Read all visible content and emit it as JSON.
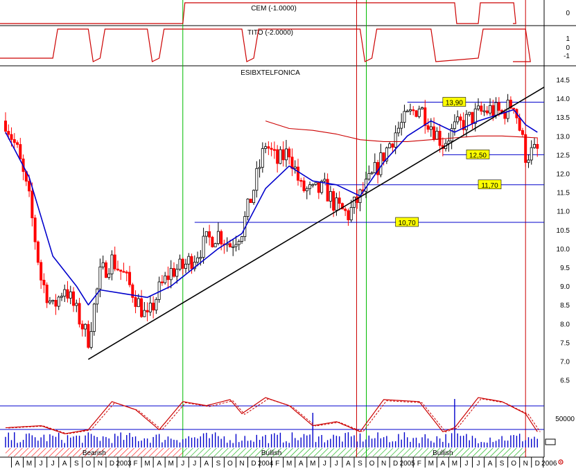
{
  "colors": {
    "indicator": "#cc0000",
    "price_up": "#000000",
    "price_down": "#ff0000",
    "moving_average_fast": "#0000cc",
    "moving_average_slow": "#cc0000",
    "trendline": "#000000",
    "support_line": "#0000cc",
    "price_label_bg": "#ffff00",
    "green_marker": "#00bb00",
    "red_marker": "#cc0000",
    "bearish_hatch": "#ff0000",
    "bullish_hatch": "#00aa00",
    "volume": "#0000cc"
  },
  "panels": {
    "cem": {
      "label": "CEM (-1.0000)",
      "ticks": [
        "0"
      ]
    },
    "tito": {
      "label": "TITO (-2.0000)",
      "ticks": [
        "1",
        "0",
        "-1"
      ]
    },
    "price": {
      "label": "ESIBXTELFONICA"
    },
    "oscillator": {
      "ticks": [
        "50000"
      ]
    }
  },
  "chart_data": {
    "type": "candlestick",
    "title": "ESIBXTELFONICA",
    "ylim": [
      6.2,
      14.7
    ],
    "y_ticks": [
      "14.5",
      "14.0",
      "13.5",
      "13.0",
      "12.5",
      "12.0",
      "11.5",
      "11.0",
      "10.5",
      "10.0",
      "9.5",
      "9.0",
      "8.5",
      "8.0",
      "7.5",
      "7.0",
      "6.5"
    ],
    "x_range": [
      "2002-03",
      "2006-01"
    ],
    "x_tick_labels": [
      "A",
      "M",
      "J",
      "J",
      "A",
      "S",
      "O",
      "N",
      "D",
      "2003",
      "F",
      "M",
      "A",
      "M",
      "J",
      "J",
      "A",
      "S",
      "O",
      "N",
      "D",
      "2004",
      "F",
      "M",
      "A",
      "M",
      "J",
      "J",
      "A",
      "S",
      "O",
      "N",
      "D",
      "2005",
      "F",
      "M",
      "A",
      "M",
      "J",
      "J",
      "A",
      "S",
      "O",
      "N",
      "D",
      "2006"
    ],
    "price_path": [
      [
        "2002-03",
        13.4
      ],
      [
        "2002-04",
        12.6
      ],
      [
        "2002-05",
        11.3
      ],
      [
        "2002-06",
        9.2
      ],
      [
        "2002-07",
        8.4
      ],
      [
        "2002-08",
        9.0
      ],
      [
        "2002-09",
        8.3
      ],
      [
        "2002-10",
        7.6
      ],
      [
        "2002-11",
        9.3
      ],
      [
        "2002-12",
        9.7
      ],
      [
        "2003-01",
        9.3
      ],
      [
        "2003-02",
        8.7
      ],
      [
        "2003-03",
        8.1
      ],
      [
        "2003-04",
        8.9
      ],
      [
        "2003-05",
        9.4
      ],
      [
        "2003-06",
        9.5
      ],
      [
        "2003-07",
        9.8
      ],
      [
        "2003-08",
        10.2
      ],
      [
        "2003-09",
        10.4
      ],
      [
        "2003-10",
        10.1
      ],
      [
        "2003-11",
        10.5
      ],
      [
        "2003-12",
        11.6
      ],
      [
        "2004-01",
        12.8
      ],
      [
        "2004-02",
        12.3
      ],
      [
        "2004-03",
        12.6
      ],
      [
        "2004-04",
        11.6
      ],
      [
        "2004-05",
        11.5
      ],
      [
        "2004-06",
        11.6
      ],
      [
        "2004-07",
        11.1
      ],
      [
        "2004-08",
        10.9
      ],
      [
        "2004-09",
        11.4
      ],
      [
        "2004-10",
        11.9
      ],
      [
        "2004-11",
        12.5
      ],
      [
        "2004-12",
        13.1
      ],
      [
        "2005-01",
        13.5
      ],
      [
        "2005-02",
        13.8
      ],
      [
        "2005-03",
        13.3
      ],
      [
        "2005-04",
        12.8
      ],
      [
        "2005-05",
        13.2
      ],
      [
        "2005-06",
        13.4
      ],
      [
        "2005-07",
        13.6
      ],
      [
        "2005-08",
        13.7
      ],
      [
        "2005-09",
        13.6
      ],
      [
        "2005-10",
        13.9
      ],
      [
        "2005-11",
        12.5
      ],
      [
        "2005-12",
        12.6
      ]
    ],
    "ma_fast": [
      [
        "2002-03",
        13.1
      ],
      [
        "2002-05",
        11.9
      ],
      [
        "2002-07",
        9.8
      ],
      [
        "2002-09",
        9.0
      ],
      [
        "2002-10",
        8.5
      ],
      [
        "2002-11",
        8.9
      ],
      [
        "2003-01",
        8.8
      ],
      [
        "2003-03",
        8.7
      ],
      [
        "2003-05",
        9.0
      ],
      [
        "2003-07",
        9.5
      ],
      [
        "2003-09",
        10.0
      ],
      [
        "2003-11",
        10.4
      ],
      [
        "2004-01",
        11.6
      ],
      [
        "2004-03",
        12.2
      ],
      [
        "2004-05",
        11.8
      ],
      [
        "2004-07",
        11.7
      ],
      [
        "2004-09",
        11.4
      ],
      [
        "2004-11",
        12.3
      ],
      [
        "2005-01",
        13.0
      ],
      [
        "2005-03",
        13.4
      ],
      [
        "2005-05",
        13.1
      ],
      [
        "2005-07",
        13.4
      ],
      [
        "2005-09",
        13.6
      ],
      [
        "2005-10",
        13.7
      ],
      [
        "2005-11",
        13.3
      ],
      [
        "2005-12",
        13.1
      ]
    ],
    "ma_slow": [
      [
        "2004-01",
        13.4
      ],
      [
        "2004-03",
        13.2
      ],
      [
        "2004-05",
        13.15
      ],
      [
        "2004-07",
        13.05
      ],
      [
        "2004-09",
        12.9
      ],
      [
        "2004-11",
        12.85
      ],
      [
        "2005-01",
        12.85
      ],
      [
        "2005-03",
        12.9
      ],
      [
        "2005-05",
        12.95
      ],
      [
        "2005-07",
        13.0
      ],
      [
        "2005-09",
        13.0
      ],
      [
        "2005-12",
        12.95
      ]
    ],
    "trendline": {
      "from": [
        "2002-10",
        7.05
      ],
      "to": [
        "2006-01",
        14.3
      ]
    },
    "levels": [
      {
        "value": 13.9,
        "label": "13,90",
        "from": "2005-01",
        "to": "2006-01",
        "label_at": "2005-04"
      },
      {
        "value": 12.5,
        "label": "12,50",
        "from": "2005-04",
        "to": "2006-01",
        "label_at": "2005-06"
      },
      {
        "value": 11.7,
        "label": "11,70",
        "from": "2004-06",
        "to": "2006-01",
        "label_at": "2005-07"
      },
      {
        "value": 10.7,
        "label": "10,70",
        "from": "2003-07",
        "to": "2006-01",
        "label_at": "2004-12"
      }
    ],
    "vertical_markers": [
      {
        "date": "2003-06",
        "color": "green"
      },
      {
        "date": "2004-09",
        "color": "red"
      },
      {
        "date": "2004-09",
        "color": "green"
      },
      {
        "date": "2005-11",
        "color": "red"
      }
    ],
    "regimes": [
      {
        "label": "Bearish",
        "from": "2002-03",
        "to": "2003-06",
        "color": "red"
      },
      {
        "label": "Bullish",
        "from": "2003-06",
        "to": "2004-09",
        "color": "green"
      },
      {
        "label": "Bullish",
        "from": "2004-09",
        "to": "2005-11",
        "color": "green"
      },
      {
        "label": "",
        "from": "2005-11",
        "to": "2005-12",
        "color": "red"
      }
    ]
  }
}
